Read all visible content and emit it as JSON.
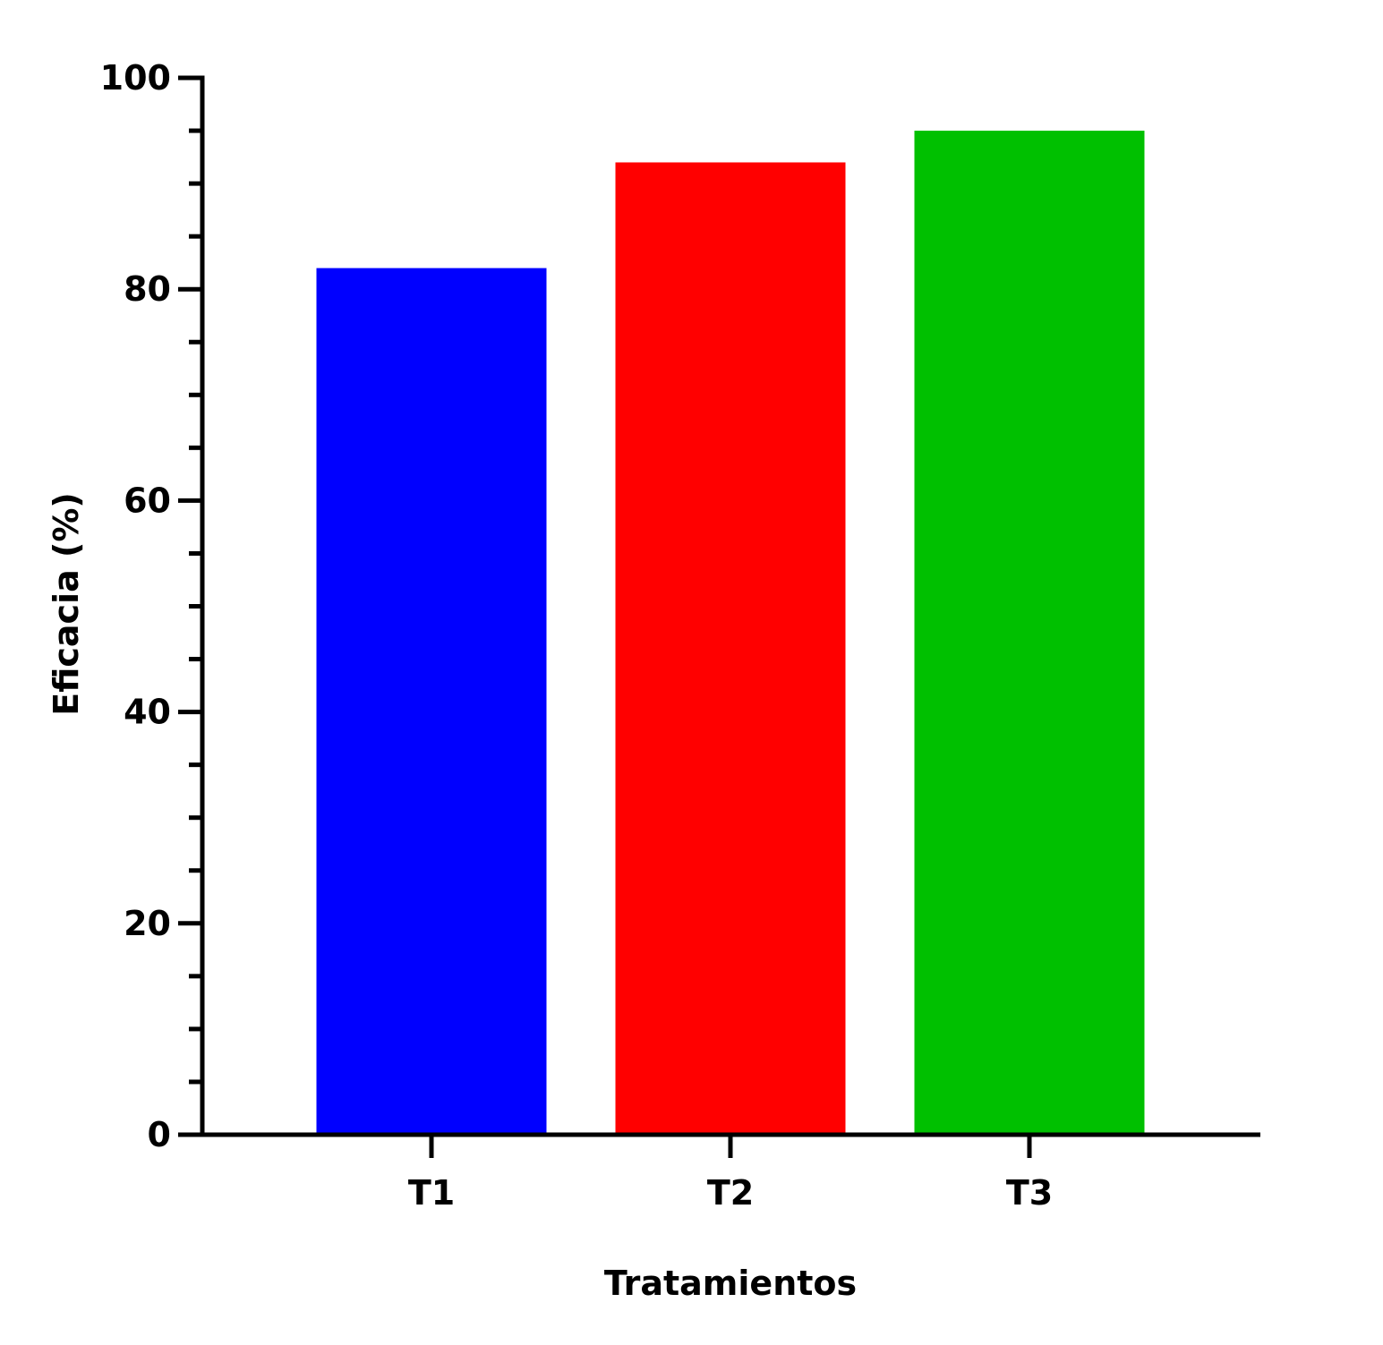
{
  "chart_data": {
    "type": "bar",
    "categories": [
      "T1",
      "T2",
      "T3"
    ],
    "values": [
      82,
      92,
      95
    ],
    "colors": [
      "#0000ff",
      "#ff0000",
      "#00c000"
    ],
    "xlabel": "Tratamientos",
    "ylabel": "Eficacia (%)",
    "ylim": [
      0,
      100
    ],
    "yticks": [
      0,
      20,
      40,
      60,
      80,
      100
    ],
    "yticks_minor_step": 5,
    "grid": false,
    "legend": "none"
  }
}
